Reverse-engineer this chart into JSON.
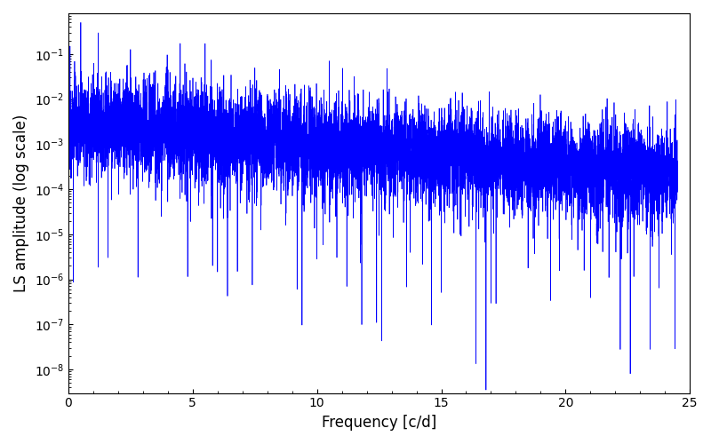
{
  "xlabel": "Frequency [c/d]",
  "ylabel": "LS amplitude (log scale)",
  "xlim": [
    0,
    25
  ],
  "ylim": [
    3e-09,
    0.8
  ],
  "line_color": "#0000FF",
  "line_width": 0.5,
  "figsize": [
    8.0,
    5.0
  ],
  "dpi": 100,
  "freq_max": 24.5,
  "n_points": 8000,
  "seed": 12345,
  "xticks": [
    0,
    5,
    10,
    15,
    20,
    25
  ]
}
